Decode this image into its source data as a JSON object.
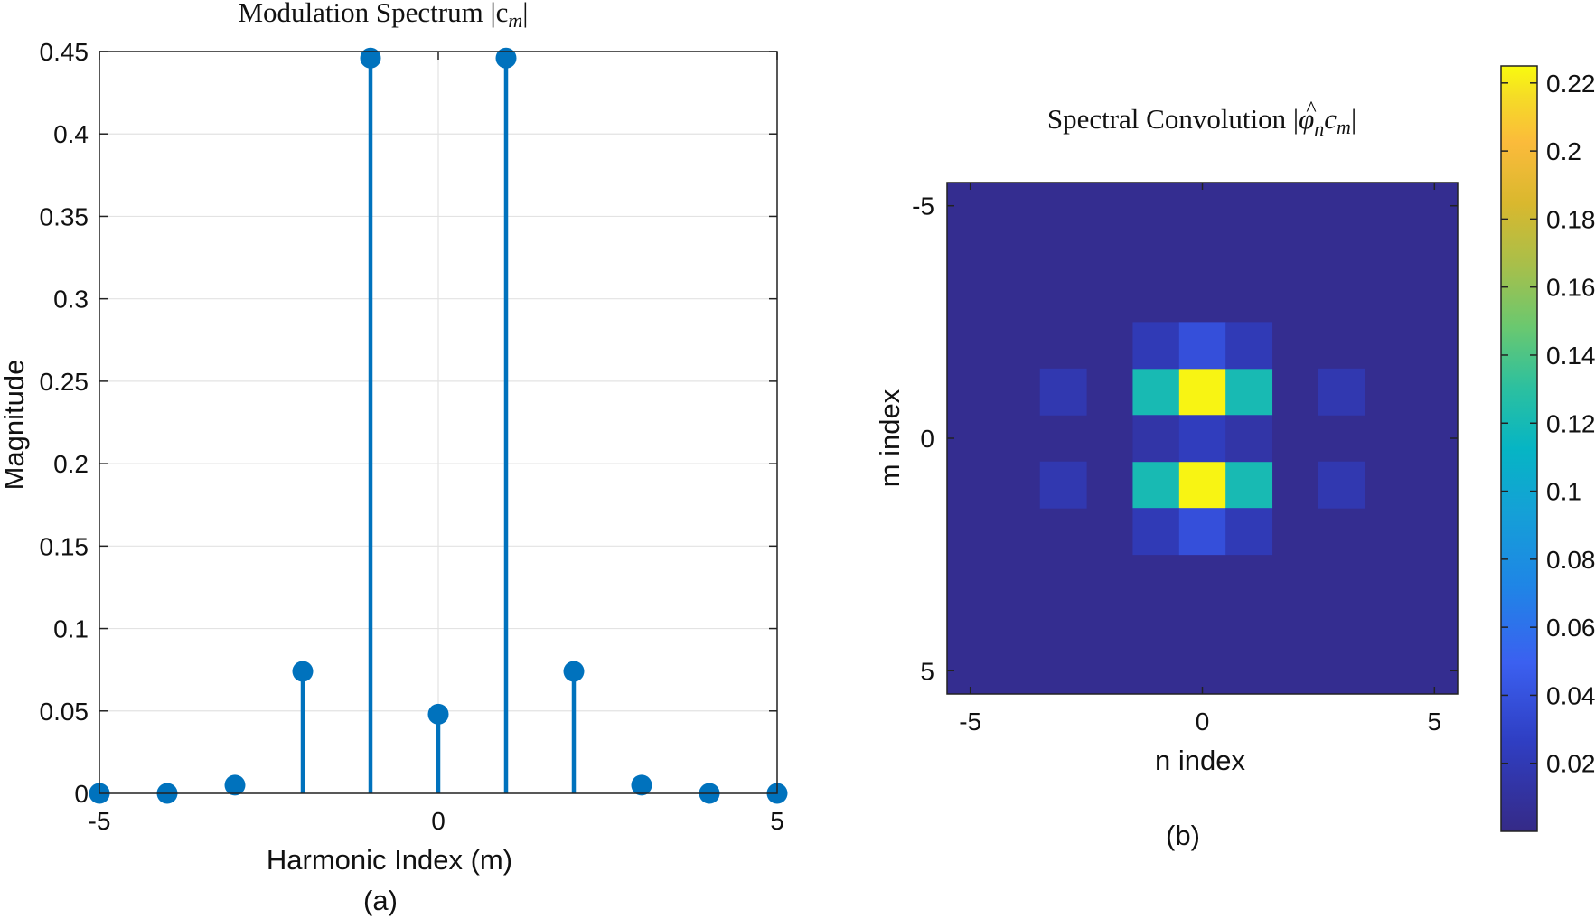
{
  "chart_data": [
    {
      "type": "stem",
      "title": "Modulation Spectrum |c",
      "title_sub": "m",
      "title_end": "|",
      "xlabel": "Harmonic Index (m)",
      "ylabel": "Magnitude",
      "caption": "(a)",
      "xlim": [
        -5,
        5
      ],
      "ylim": [
        0,
        0.45
      ],
      "xticks": [
        -5,
        0,
        5
      ],
      "yticks": [
        0,
        0.05,
        0.1,
        0.15,
        0.2,
        0.25,
        0.3,
        0.35,
        0.4,
        0.45
      ],
      "grid": true,
      "x": [
        -5,
        -4,
        -3,
        -2,
        -1,
        0,
        1,
        2,
        3,
        4,
        5
      ],
      "values": [
        0.0,
        0.0,
        0.005,
        0.074,
        0.446,
        0.048,
        0.446,
        0.074,
        0.005,
        0.0,
        0.0
      ],
      "color": "#0072BD"
    },
    {
      "type": "heatmap",
      "title": "Spectral Convolution |",
      "title_phi": "φ",
      "title_hat": "^",
      "title_sub_n": "n",
      "title_c": "c",
      "title_sub_m": "m",
      "title_end": "|",
      "xlabel": "n index",
      "ylabel": "m index",
      "caption": "(b)",
      "n_range": [
        -5,
        5
      ],
      "m_range": [
        -5,
        5
      ],
      "xticks": [
        -5,
        0,
        5
      ],
      "yticks": [
        -5,
        0,
        5
      ],
      "colormap": "parula",
      "clim": [
        0,
        0.225
      ],
      "colorbar_ticks": [
        0.02,
        0.04,
        0.06,
        0.08,
        0.1,
        0.12,
        0.14,
        0.16,
        0.18,
        0.2,
        0.22
      ],
      "cells": [
        {
          "n": -3,
          "m": -1,
          "v": 0.018
        },
        {
          "n": -3,
          "m": 1,
          "v": 0.018
        },
        {
          "n": 3,
          "m": -1,
          "v": 0.018
        },
        {
          "n": 3,
          "m": 1,
          "v": 0.018
        },
        {
          "n": -1,
          "m": -1,
          "v": 0.121
        },
        {
          "n": 0,
          "m": -1,
          "v": 0.223
        },
        {
          "n": 1,
          "m": -1,
          "v": 0.121
        },
        {
          "n": -1,
          "m": 1,
          "v": 0.121
        },
        {
          "n": 0,
          "m": 1,
          "v": 0.223
        },
        {
          "n": 1,
          "m": 1,
          "v": 0.121
        },
        {
          "n": -1,
          "m": -2,
          "v": 0.021
        },
        {
          "n": 0,
          "m": -2,
          "v": 0.038
        },
        {
          "n": 1,
          "m": -2,
          "v": 0.021
        },
        {
          "n": -1,
          "m": 2,
          "v": 0.021
        },
        {
          "n": 0,
          "m": 2,
          "v": 0.038
        },
        {
          "n": 1,
          "m": 2,
          "v": 0.021
        },
        {
          "n": -1,
          "m": 0,
          "v": 0.014
        },
        {
          "n": 0,
          "m": 0,
          "v": 0.024
        },
        {
          "n": 1,
          "m": 0,
          "v": 0.014
        }
      ],
      "background_value": 0.004
    }
  ]
}
